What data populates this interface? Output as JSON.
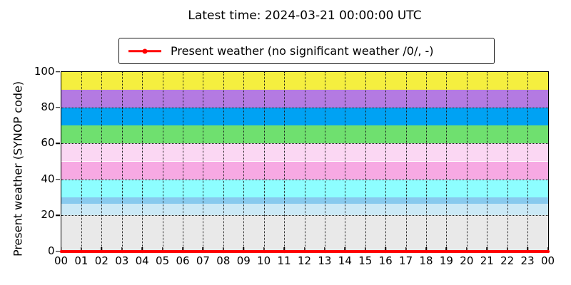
{
  "chart_data": {
    "type": "line",
    "title": "Latest time: 2024-03-21 00:00:00 UTC",
    "ylabel": "Present weather (SYNOP code)",
    "xlabel": "",
    "x": [
      "00",
      "01",
      "02",
      "03",
      "04",
      "05",
      "06",
      "07",
      "08",
      "09",
      "10",
      "11",
      "12",
      "13",
      "14",
      "15",
      "16",
      "17",
      "18",
      "19",
      "20",
      "21",
      "22",
      "23",
      "00"
    ],
    "series": [
      {
        "name": "Present weather (no significant weather /0/, -)",
        "color": "#ff0000",
        "marker": "dot",
        "values": [
          0,
          0,
          0,
          0,
          0,
          0,
          0,
          0,
          0,
          0,
          0,
          0,
          0,
          0,
          0,
          0,
          0,
          0,
          0,
          0,
          0,
          0,
          0,
          0,
          0
        ]
      }
    ],
    "ylim": [
      0,
      100
    ],
    "yticks": [
      0,
      20,
      40,
      60,
      80,
      100
    ],
    "grid": "dotted",
    "legend_position": "top-center",
    "background_bands": [
      {
        "from": 0,
        "to": 20,
        "color": "#e9e9e9"
      },
      {
        "from": 20,
        "to": 26.5,
        "color": "#cbe9f6"
      },
      {
        "from": 26.5,
        "to": 30,
        "color": "#88caee"
      },
      {
        "from": 30,
        "to": 40,
        "color": "#8dfeff"
      },
      {
        "from": 40,
        "to": 50,
        "color": "#f7a9e3"
      },
      {
        "from": 50,
        "to": 60,
        "color": "#fbd7f3"
      },
      {
        "from": 60,
        "to": 70,
        "color": "#6fe06f"
      },
      {
        "from": 70,
        "to": 80,
        "color": "#00a2f3"
      },
      {
        "from": 80,
        "to": 90,
        "color": "#b47ae2"
      },
      {
        "from": 90,
        "to": 100,
        "color": "#f5ef3f"
      }
    ]
  }
}
